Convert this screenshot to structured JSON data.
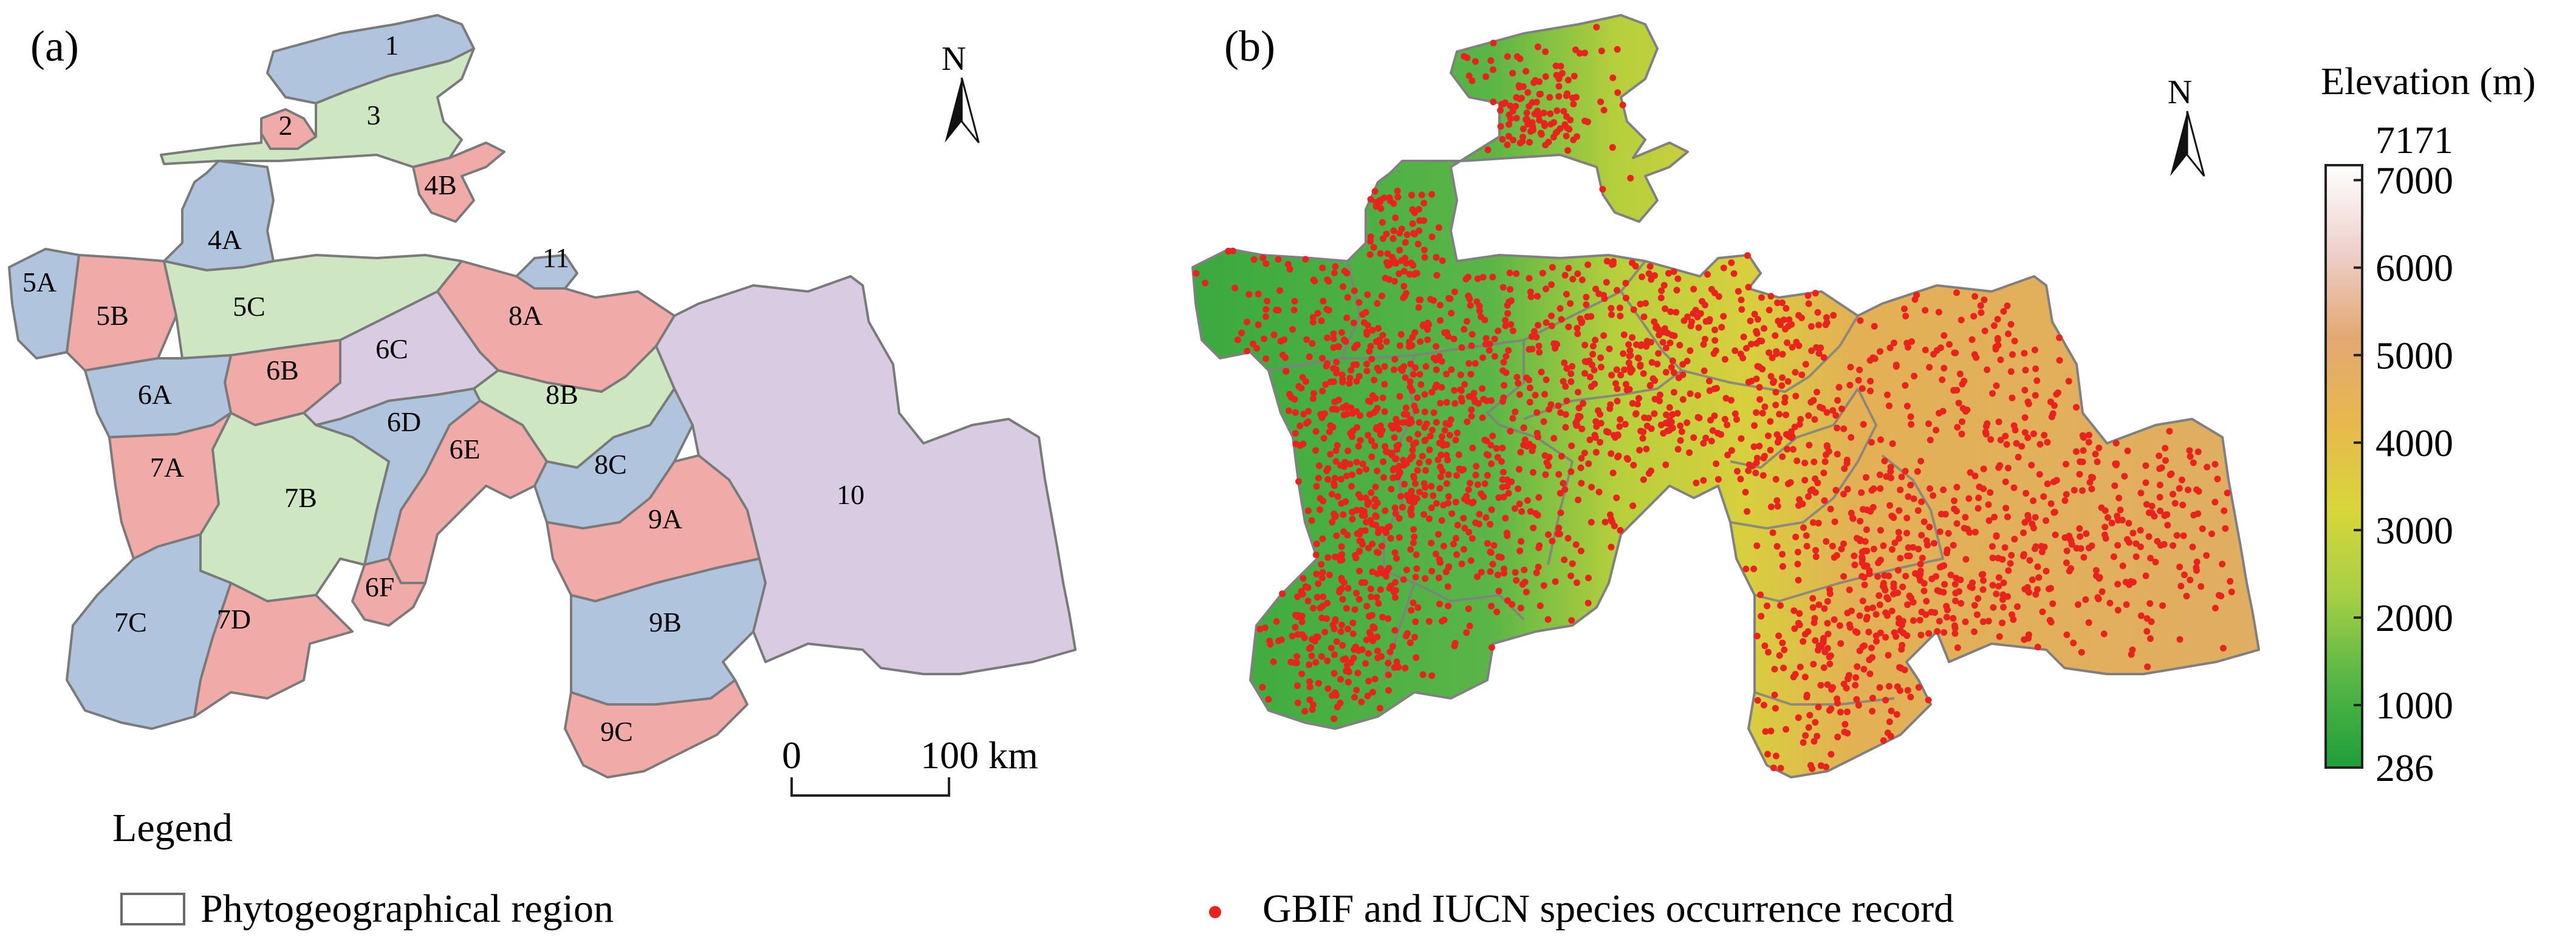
{
  "panel_a": {
    "label": "(a)",
    "north": "N",
    "scale_zero": "0",
    "scale_distance": "100 km",
    "legend_title": "Legend",
    "legend_item": "Phytogeographical region",
    "colors": {
      "blue": "#b0c4de",
      "pink": "#f0aaa8",
      "green": "#cfe6c2",
      "lavender": "#d9cbe2",
      "border": "#7a7a7a"
    },
    "regions": [
      {
        "id": "1",
        "label": "1",
        "color": "blue"
      },
      {
        "id": "2",
        "label": "2",
        "color": "pink"
      },
      {
        "id": "3",
        "label": "3",
        "color": "green"
      },
      {
        "id": "4A",
        "label": "4A",
        "color": "blue"
      },
      {
        "id": "4B",
        "label": "4B",
        "color": "pink"
      },
      {
        "id": "5A",
        "label": "5A",
        "color": "blue"
      },
      {
        "id": "5B",
        "label": "5B",
        "color": "pink"
      },
      {
        "id": "5C",
        "label": "5C",
        "color": "green"
      },
      {
        "id": "6A",
        "label": "6A",
        "color": "blue"
      },
      {
        "id": "6B",
        "label": "6B",
        "color": "pink"
      },
      {
        "id": "6C",
        "label": "6C",
        "color": "lavender"
      },
      {
        "id": "6D",
        "label": "6D",
        "color": "blue"
      },
      {
        "id": "6E",
        "label": "6E",
        "color": "pink"
      },
      {
        "id": "6F",
        "label": "6F",
        "color": "pink"
      },
      {
        "id": "7A",
        "label": "7A",
        "color": "pink"
      },
      {
        "id": "7B",
        "label": "7B",
        "color": "green"
      },
      {
        "id": "7C",
        "label": "7C",
        "color": "blue"
      },
      {
        "id": "7D",
        "label": "7D",
        "color": "pink"
      },
      {
        "id": "8A",
        "label": "8A",
        "color": "pink"
      },
      {
        "id": "8B",
        "label": "8B",
        "color": "green"
      },
      {
        "id": "8C",
        "label": "8C",
        "color": "blue"
      },
      {
        "id": "9A",
        "label": "9A",
        "color": "pink"
      },
      {
        "id": "9B",
        "label": "9B",
        "color": "blue"
      },
      {
        "id": "9C",
        "label": "9C",
        "color": "pink"
      },
      {
        "id": "10",
        "label": "10",
        "color": "lavender"
      },
      {
        "id": "11",
        "label": "11",
        "color": "blue"
      }
    ]
  },
  "panel_b": {
    "label": "(b)",
    "north": "N",
    "legend_item": "GBIF and IUCN species occurrence record",
    "record_color": "#e8231e",
    "colorbar": {
      "title": "Elevation (m)",
      "min": 286,
      "max": 7171,
      "max_label": "7171",
      "min_label": "286",
      "ticks": [
        "7000",
        "6000",
        "5000",
        "4000",
        "3000",
        "2000",
        "1000"
      ],
      "tick_values": [
        7000,
        6000,
        5000,
        4000,
        3000,
        2000,
        1000
      ],
      "gradient": [
        "#1f9e3a",
        "#55b646",
        "#a6cf45",
        "#d8d63a",
        "#e8b84e",
        "#e3a872",
        "#eed0cc",
        "#ffffff"
      ]
    }
  }
}
